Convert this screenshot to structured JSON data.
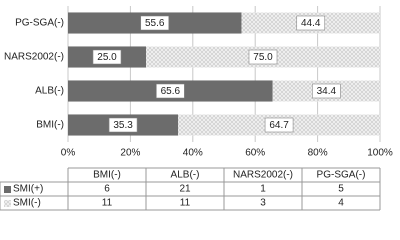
{
  "chart_data": {
    "type": "stacked-bar-100",
    "categories": [
      "BMI(-)",
      "ALB(-)",
      "NARS2002(-)",
      "PG-SGA(-)"
    ],
    "series": [
      {
        "name": "SMI(+)",
        "color": "#7a7a7a",
        "values": [
          35.3,
          65.6,
          25,
          55.6
        ],
        "value_labels": [
          "35.3",
          "65.6",
          "25.0",
          "55.6"
        ],
        "counts": [
          6,
          21,
          1,
          5
        ]
      },
      {
        "name": "SMI(-)",
        "color": "#d0d0d0",
        "values": [
          64.7,
          34.4,
          75,
          44.4
        ],
        "value_labels": [
          "64.7",
          "34.4",
          "75.0",
          "44.4"
        ],
        "counts": [
          11,
          11,
          3,
          4
        ]
      }
    ],
    "xlim": [
      0,
      100
    ],
    "xticks": [
      {
        "value": 0,
        "label": "0%"
      },
      {
        "value": 20,
        "label": "20%"
      },
      {
        "value": 40,
        "label": "40%"
      },
      {
        "value": 60,
        "label": "60%"
      },
      {
        "value": 80,
        "label": "80%"
      },
      {
        "value": 100,
        "label": "100%"
      }
    ],
    "grid": true
  }
}
